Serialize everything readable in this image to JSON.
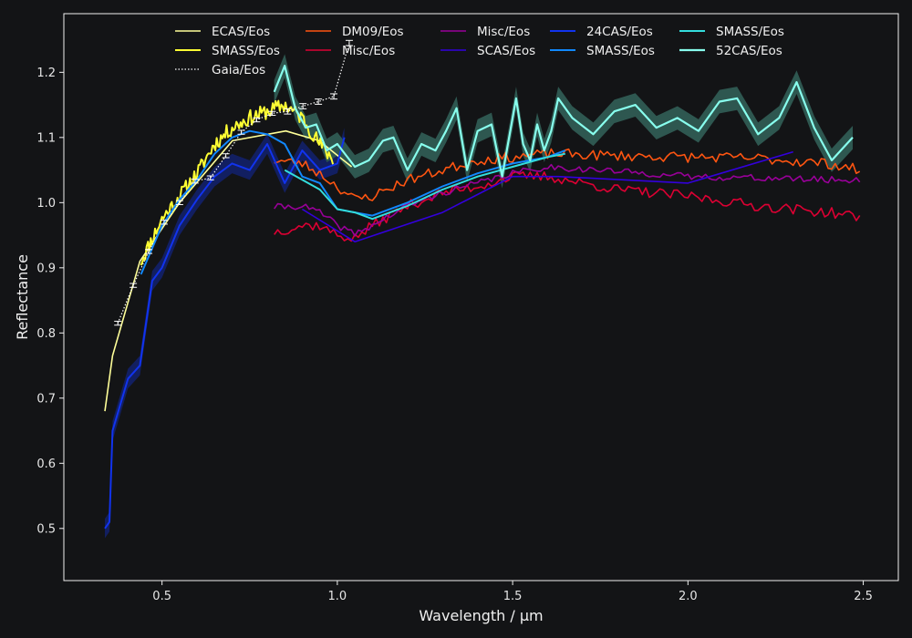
{
  "chart_data": {
    "type": "line",
    "xlabel": "Wavelength / µm",
    "ylabel": "Reflectance",
    "xlim": [
      0.22,
      2.6
    ],
    "ylim": [
      0.42,
      1.29
    ],
    "xticks": [
      0.5,
      1.0,
      1.5,
      2.0,
      2.5
    ],
    "yticks": [
      0.5,
      0.6,
      0.7,
      0.8,
      0.9,
      1.0,
      1.1,
      1.2
    ],
    "xtick_labels": [
      "0.5",
      "1.0",
      "1.5",
      "2.0",
      "2.5"
    ],
    "ytick_labels": [
      "0.5",
      "0.6",
      "0.7",
      "0.8",
      "0.9",
      "1.0",
      "1.1",
      "1.2"
    ],
    "legend_position": "top",
    "legend_columns": 5,
    "series": [
      {
        "name": "ECAS/Eos",
        "color": "#ffff99",
        "style": "solid",
        "width": 1.6,
        "x": [
          0.337,
          0.359,
          0.437,
          0.55,
          0.701,
          0.853,
          0.948,
          1.041
        ],
        "y": [
          0.68,
          0.765,
          0.91,
          1.0,
          1.095,
          1.11,
          1.095,
          1.055
        ]
      },
      {
        "name": "SMASS/Eos",
        "color": "#ffff33",
        "style": "solid",
        "width": 2.0,
        "gen": {
          "x0": 0.44,
          "x1": 0.99,
          "step": 0.004,
          "noise": 0.012,
          "seed": 11
        },
        "x": [
          0.44,
          0.5,
          0.55,
          0.6,
          0.65,
          0.7,
          0.75,
          0.8,
          0.85,
          0.9,
          0.95,
          0.99
        ],
        "y": [
          0.91,
          0.975,
          1.01,
          1.045,
          1.09,
          1.115,
          1.13,
          1.14,
          1.15,
          1.13,
          1.09,
          1.065
        ]
      },
      {
        "name": "Gaia/Eos",
        "color": "#ffffff",
        "style": "dotted",
        "width": 1.2,
        "errorbars": true,
        "x": [
          0.374,
          0.418,
          0.462,
          0.506,
          0.55,
          0.594,
          0.638,
          0.682,
          0.726,
          0.77,
          0.814,
          0.858,
          0.902,
          0.946,
          0.99,
          1.034
        ],
        "y": [
          0.815,
          0.873,
          0.925,
          0.97,
          1.0,
          1.033,
          1.038,
          1.072,
          1.108,
          1.127,
          1.137,
          1.14,
          1.148,
          1.155,
          1.163,
          1.245
        ],
        "err": [
          0.003,
          0.003,
          0.003,
          0.003,
          0.003,
          0.003,
          0.003,
          0.003,
          0.003,
          0.003,
          0.003,
          0.004,
          0.004,
          0.004,
          0.004,
          0.004
        ]
      },
      {
        "name": "DM09/Eos",
        "color": "#ff5511",
        "style": "solid",
        "width": 1.6,
        "gen": {
          "x0": 0.82,
          "x1": 2.49,
          "step": 0.01,
          "noise": 0.008,
          "seed": 23
        },
        "x": [
          0.82,
          0.9,
          0.95,
          1.0,
          1.05,
          1.1,
          1.2,
          1.3,
          1.4,
          1.5,
          1.6,
          1.8,
          2.0,
          2.2,
          2.4,
          2.49
        ],
        "y": [
          1.065,
          1.06,
          1.045,
          1.025,
          1.005,
          1.01,
          1.035,
          1.05,
          1.065,
          1.07,
          1.075,
          1.072,
          1.07,
          1.068,
          1.06,
          1.05
        ]
      },
      {
        "name": "Misc/Eos",
        "color": "#dd0033",
        "style": "solid",
        "width": 1.6,
        "gen": {
          "x0": 0.82,
          "x1": 2.49,
          "step": 0.01,
          "noise": 0.008,
          "seed": 37
        },
        "x": [
          0.82,
          0.9,
          0.95,
          1.0,
          1.05,
          1.1,
          1.2,
          1.3,
          1.4,
          1.5,
          1.6,
          1.8,
          2.0,
          2.2,
          2.4,
          2.49
        ],
        "y": [
          0.955,
          0.965,
          0.965,
          0.95,
          0.945,
          0.965,
          0.995,
          1.015,
          1.025,
          1.04,
          1.04,
          1.02,
          1.01,
          0.995,
          0.985,
          0.978
        ]
      },
      {
        "name": "Misc/Eos",
        "color": "#990099",
        "style": "solid",
        "width": 1.6,
        "gen": {
          "x0": 0.82,
          "x1": 2.49,
          "step": 0.01,
          "noise": 0.005,
          "seed": 41
        },
        "x": [
          0.82,
          0.9,
          0.95,
          1.0,
          1.05,
          1.1,
          1.2,
          1.3,
          1.4,
          1.5,
          1.6,
          1.8,
          2.0,
          2.2,
          2.4,
          2.49
        ],
        "y": [
          0.993,
          0.995,
          0.985,
          0.965,
          0.952,
          0.965,
          0.995,
          1.015,
          1.03,
          1.045,
          1.055,
          1.048,
          1.04,
          1.038,
          1.035,
          1.035
        ]
      },
      {
        "name": "SCAS/Eos",
        "color": "#3300dd",
        "style": "solid",
        "width": 1.6,
        "x": [
          0.9,
          1.05,
          1.3,
          1.5,
          1.63,
          2.0,
          2.3
        ],
        "y": [
          0.99,
          0.94,
          0.985,
          1.04,
          1.04,
          1.03,
          1.078
        ]
      },
      {
        "name": "24CAS/Eos",
        "color": "#1133ee",
        "style": "solid",
        "width": 2.0,
        "band": 0.015,
        "x": [
          0.337,
          0.35,
          0.359,
          0.403,
          0.437,
          0.472,
          0.5,
          0.55,
          0.6,
          0.65,
          0.7,
          0.75,
          0.8,
          0.85,
          0.9,
          0.95,
          1.0,
          1.02
        ],
        "y": [
          0.5,
          0.51,
          0.65,
          0.73,
          0.75,
          0.88,
          0.9,
          0.965,
          1.005,
          1.04,
          1.06,
          1.05,
          1.09,
          1.03,
          1.08,
          1.05,
          1.06,
          1.1
        ]
      },
      {
        "name": "SMASS/Eos",
        "color": "#1188ff",
        "style": "solid",
        "width": 2.0,
        "x": [
          0.44,
          0.5,
          0.55,
          0.6,
          0.65,
          0.7,
          0.75,
          0.8,
          0.85,
          0.9,
          0.95,
          1.0,
          1.05,
          1.1,
          1.2,
          1.3,
          1.4,
          1.5,
          1.6,
          1.65
        ],
        "y": [
          0.89,
          0.965,
          1.005,
          1.035,
          1.075,
          1.1,
          1.11,
          1.105,
          1.09,
          1.04,
          1.03,
          0.99,
          0.985,
          0.98,
          1.0,
          1.025,
          1.045,
          1.06,
          1.07,
          1.08
        ]
      },
      {
        "name": "SMASS/Eos",
        "color": "#33dddd",
        "style": "solid",
        "width": 2.0,
        "x": [
          0.85,
          0.9,
          0.95,
          1.0,
          1.05,
          1.1,
          1.2,
          1.3,
          1.4,
          1.5,
          1.6,
          1.65
        ],
        "y": [
          1.05,
          1.035,
          1.02,
          0.99,
          0.985,
          0.975,
          0.995,
          1.02,
          1.04,
          1.055,
          1.07,
          1.075
        ]
      },
      {
        "name": "52CAS/Eos",
        "color": "#88ffee",
        "style": "solid",
        "width": 2.2,
        "band": 0.018,
        "bandcolor": "#2e5750",
        "x": [
          0.82,
          0.85,
          0.88,
          0.91,
          0.94,
          0.97,
          1.0,
          1.05,
          1.09,
          1.13,
          1.16,
          1.2,
          1.24,
          1.28,
          1.31,
          1.34,
          1.37,
          1.4,
          1.44,
          1.47,
          1.51,
          1.53,
          1.55,
          1.57,
          1.59,
          1.61,
          1.63,
          1.67,
          1.73,
          1.79,
          1.85,
          1.91,
          1.97,
          2.03,
          2.09,
          2.14,
          2.2,
          2.26,
          2.31,
          2.36,
          2.41,
          2.47
        ],
        "y": [
          1.17,
          1.21,
          1.145,
          1.115,
          1.12,
          1.08,
          1.09,
          1.055,
          1.065,
          1.095,
          1.1,
          1.05,
          1.09,
          1.08,
          1.11,
          1.145,
          1.05,
          1.11,
          1.12,
          1.04,
          1.16,
          1.09,
          1.065,
          1.12,
          1.08,
          1.11,
          1.16,
          1.13,
          1.105,
          1.14,
          1.15,
          1.115,
          1.13,
          1.11,
          1.155,
          1.16,
          1.105,
          1.13,
          1.185,
          1.115,
          1.065,
          1.1
        ]
      }
    ]
  }
}
